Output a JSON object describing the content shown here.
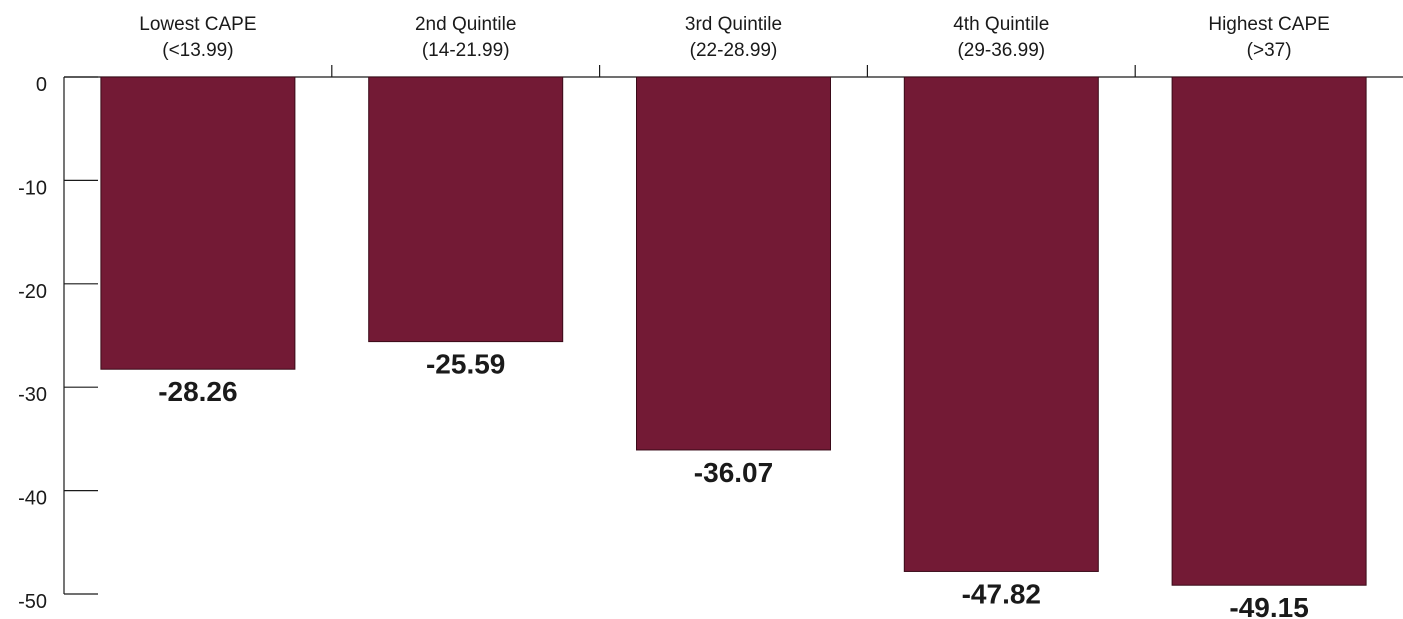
{
  "chart_data": {
    "type": "bar",
    "categories": [
      [
        "Lowest CAPE",
        "(<13.99)"
      ],
      [
        "2nd Quintile",
        "(14-21.99)"
      ],
      [
        "3rd Quintile",
        "(22-28.99)"
      ],
      [
        "4th Quintile",
        "(29-36.99)"
      ],
      [
        "Highest CAPE",
        "(>37)"
      ]
    ],
    "values": [
      -28.26,
      -25.59,
      -36.07,
      -47.82,
      -49.15
    ],
    "value_labels": [
      "-28.26",
      "-25.59",
      "-36.07",
      "-47.82",
      "-49.15"
    ],
    "ylim": [
      -50,
      0
    ],
    "yticks": [
      0,
      -10,
      -20,
      -30,
      -40,
      -50
    ],
    "ytick_labels": [
      "0",
      "-10",
      "-20",
      "-30",
      "-40",
      "-50"
    ],
    "category_axis_position": "top",
    "grid": false,
    "bar_color": "#731a35",
    "title": "",
    "xlabel": "",
    "ylabel": ""
  }
}
